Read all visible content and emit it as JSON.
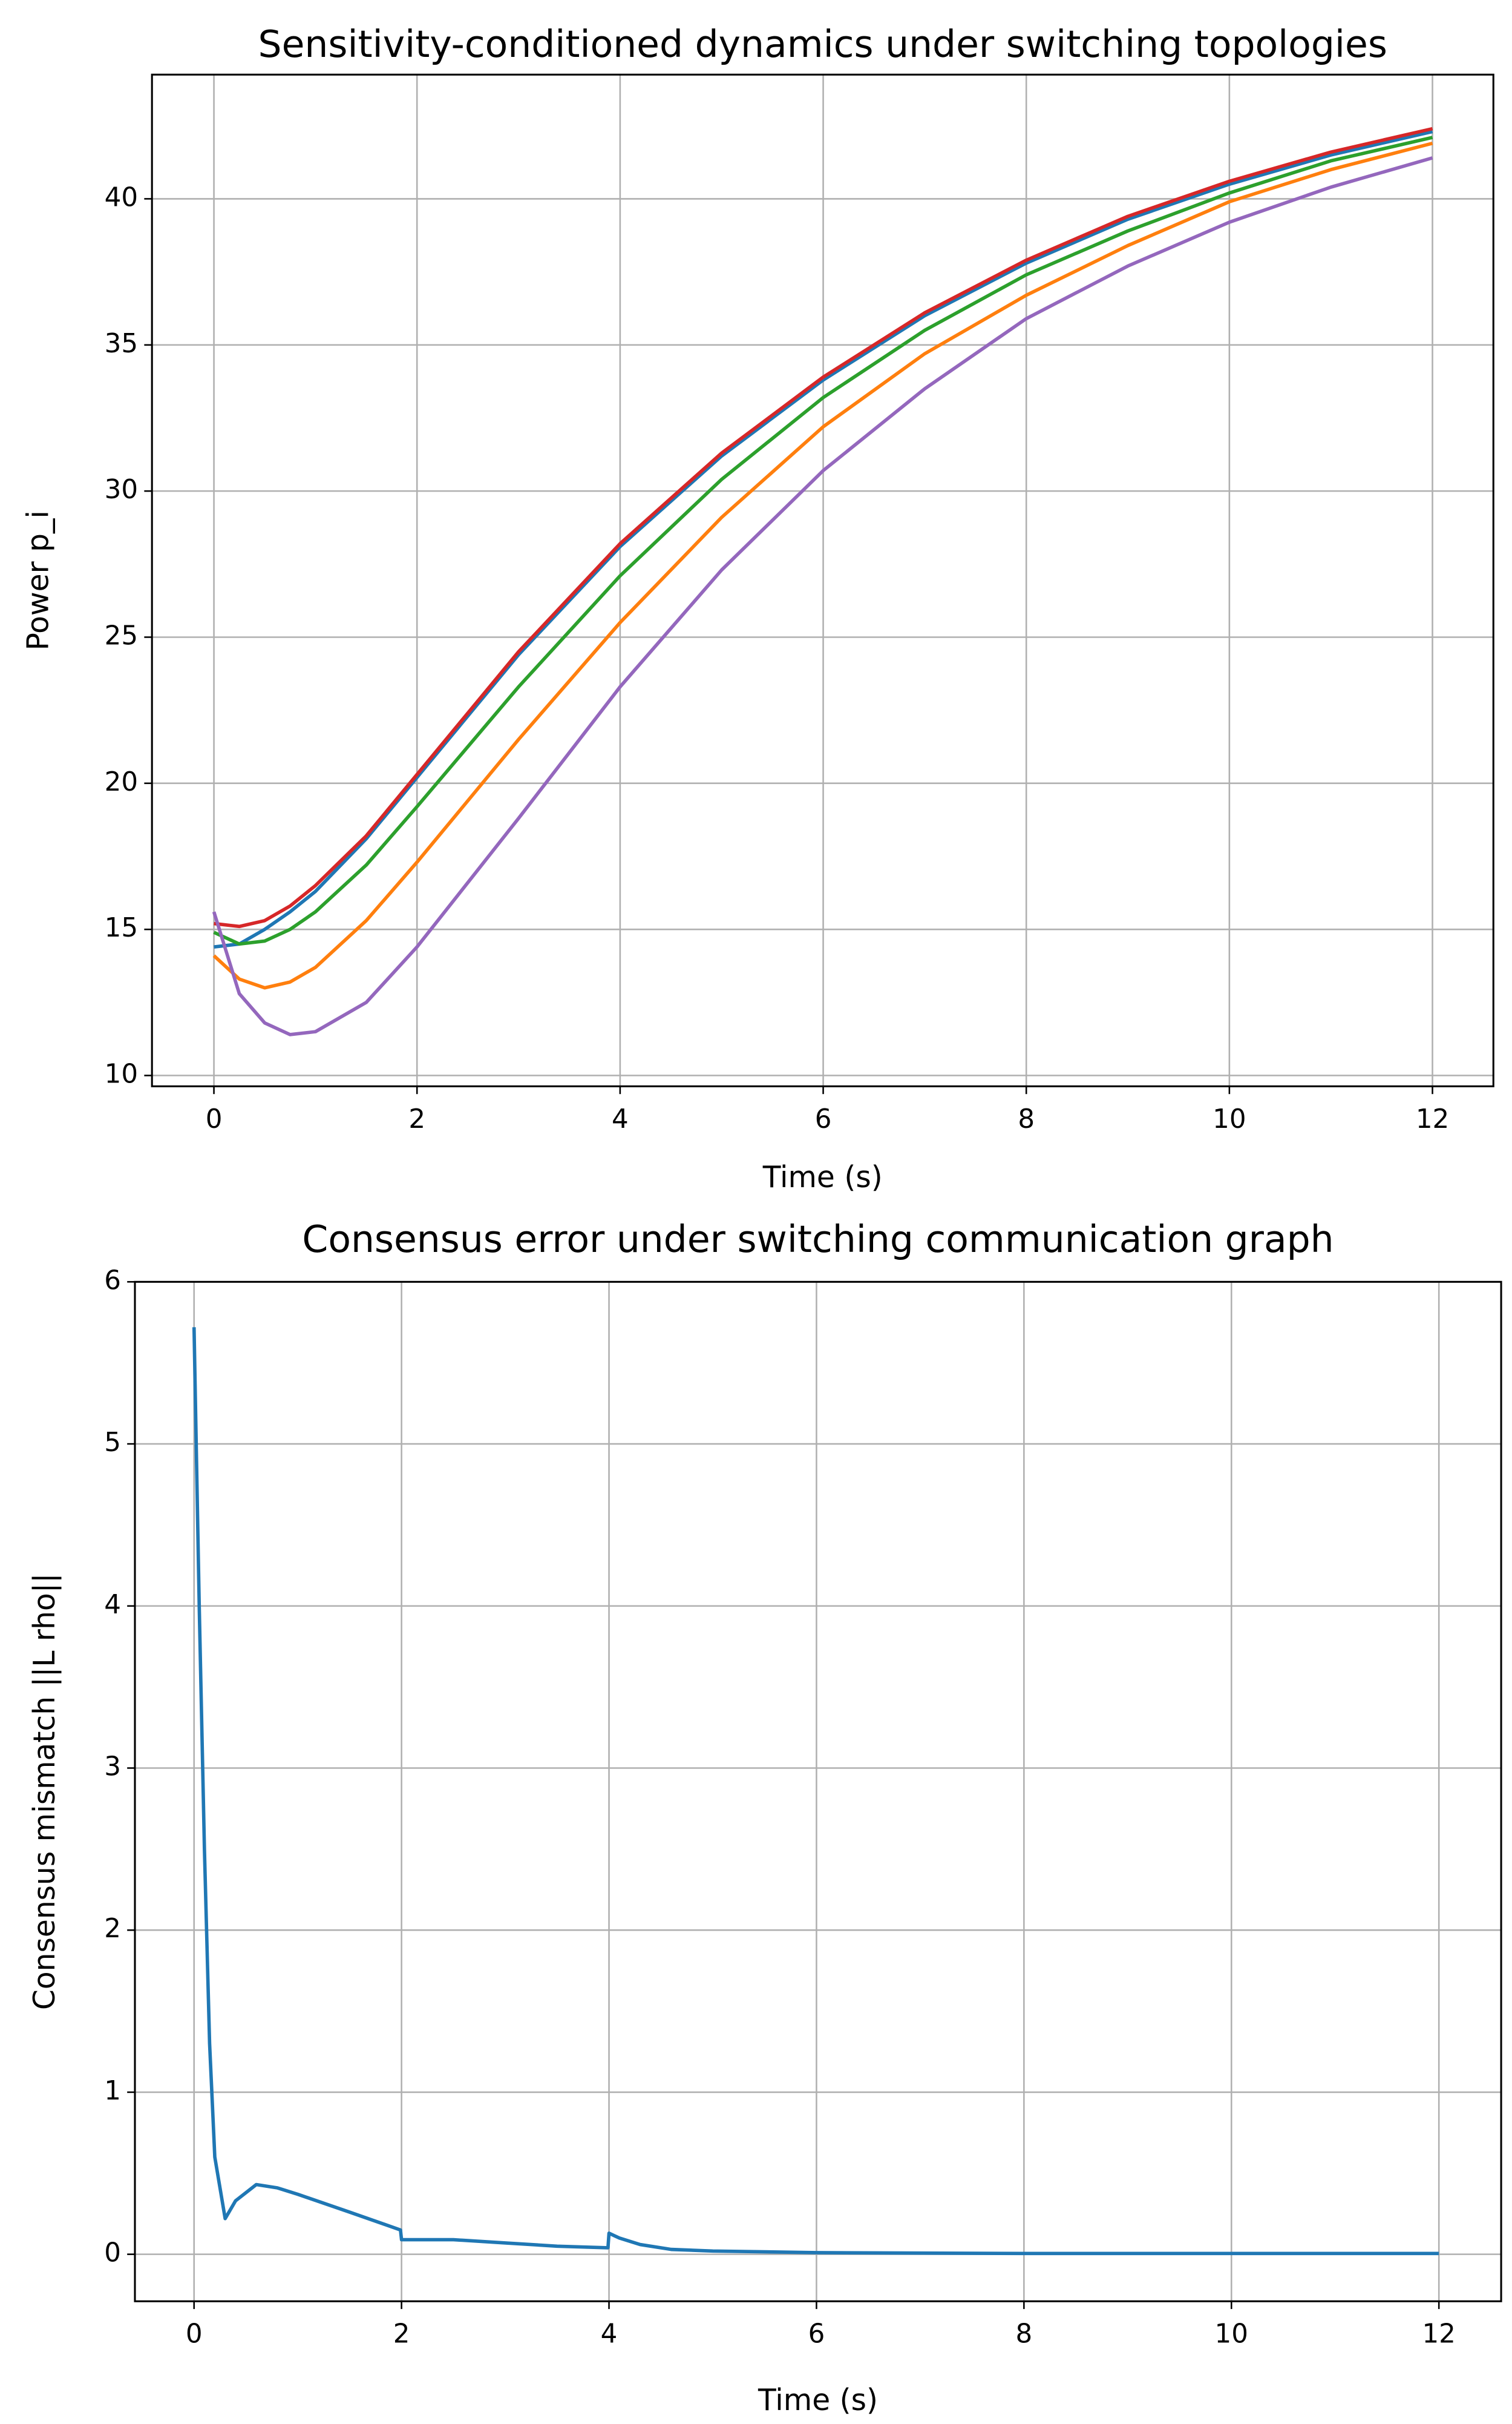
{
  "chart_data": [
    {
      "type": "line",
      "title": "Sensitivity-conditioned dynamics under switching topologies",
      "x_label": "Time (s)",
      "y_label": "Power p_i",
      "x": [
        0,
        0.25,
        0.5,
        0.75,
        1,
        1.5,
        2,
        3,
        4,
        5,
        6,
        7,
        8,
        9,
        10,
        11,
        12
      ],
      "series": [
        {
          "color": "#1f77b4",
          "values": [
            14.4,
            14.5,
            15.0,
            15.6,
            16.3,
            18.1,
            20.2,
            24.4,
            28.1,
            31.2,
            33.8,
            36.0,
            37.8,
            39.3,
            40.5,
            41.5,
            42.3
          ]
        },
        {
          "color": "#ff7f0e",
          "values": [
            14.1,
            13.3,
            13.0,
            13.2,
            13.7,
            15.3,
            17.3,
            21.5,
            25.5,
            29.1,
            32.2,
            34.7,
            36.7,
            38.4,
            39.9,
            41.0,
            41.9
          ]
        },
        {
          "color": "#2ca02c",
          "values": [
            14.9,
            14.5,
            14.6,
            15.0,
            15.6,
            17.2,
            19.2,
            23.3,
            27.1,
            30.4,
            33.2,
            35.5,
            37.4,
            38.9,
            40.2,
            41.3,
            42.1
          ]
        },
        {
          "color": "#d62728",
          "values": [
            15.2,
            15.1,
            15.3,
            15.8,
            16.5,
            18.2,
            20.3,
            24.5,
            28.2,
            31.3,
            33.9,
            36.1,
            37.9,
            39.4,
            40.6,
            41.6,
            42.4
          ]
        },
        {
          "color": "#9467bd",
          "values": [
            15.6,
            12.8,
            11.8,
            11.4,
            11.5,
            12.5,
            14.4,
            18.8,
            23.3,
            27.3,
            30.7,
            33.5,
            35.9,
            37.7,
            39.2,
            40.4,
            41.4
          ]
        }
      ],
      "xlim": [
        -0.61,
        12.6
      ],
      "ylim": [
        9.63,
        44.25
      ],
      "xticks": [
        0,
        2,
        4,
        6,
        8,
        10,
        12
      ],
      "yticks": [
        10,
        15,
        20,
        25,
        30,
        35,
        40
      ],
      "grid": true
    },
    {
      "type": "line",
      "title": "Consensus error under switching communication graph",
      "x_label": "Time (s)",
      "y_label": "Consensus mismatch ||L rho||",
      "x": [
        0,
        0.05,
        0.1,
        0.15,
        0.2,
        0.3,
        0.4,
        0.6,
        0.8,
        1,
        1.5,
        1.99,
        2,
        2.5,
        3,
        3.5,
        3.99,
        4,
        4.1,
        4.3,
        4.6,
        5,
        6,
        8,
        10,
        12
      ],
      "series": [
        {
          "color": "#1f77b4",
          "values": [
            5.72,
            4.0,
            2.5,
            1.3,
            0.6,
            0.22,
            0.33,
            0.43,
            0.41,
            0.37,
            0.26,
            0.15,
            0.09,
            0.09,
            0.07,
            0.05,
            0.04,
            0.13,
            0.1,
            0.06,
            0.03,
            0.02,
            0.01,
            0.005,
            0.005,
            0.005
          ]
        }
      ],
      "xlim": [
        -0.57,
        12.6
      ],
      "ylim": [
        -0.29,
        6
      ],
      "xticks": [
        0,
        2,
        4,
        6,
        8,
        10,
        12
      ],
      "yticks": [
        0,
        1,
        2,
        3,
        4,
        5,
        6
      ],
      "grid": true
    }
  ]
}
